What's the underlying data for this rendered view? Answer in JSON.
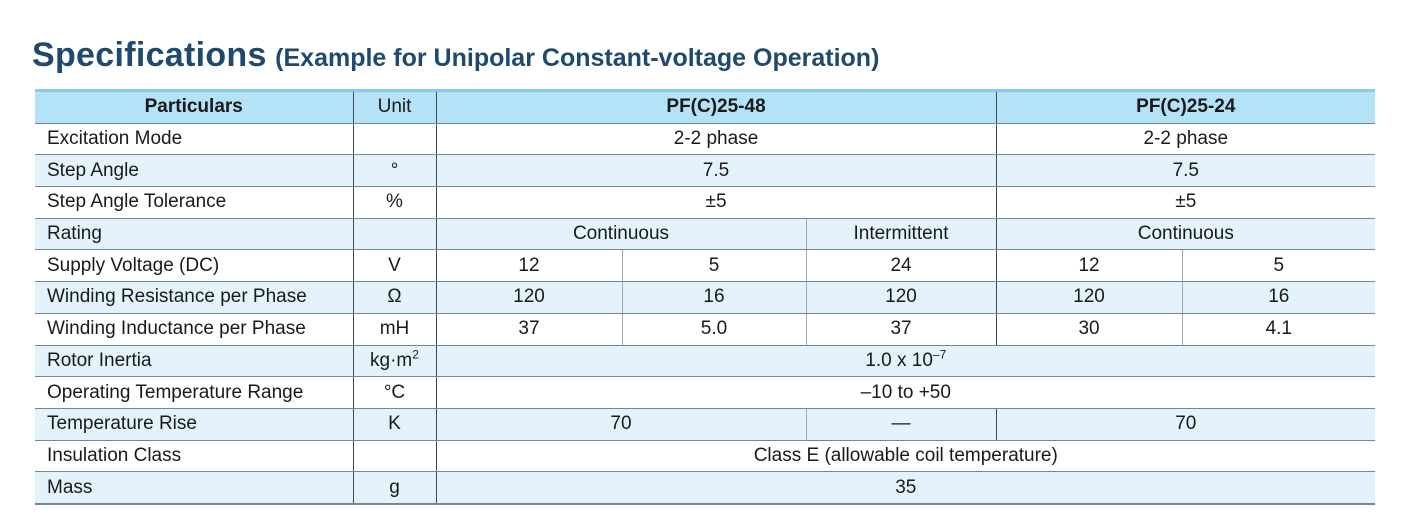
{
  "title": {
    "main": "Specifications",
    "sub": "(Example for Unipolar Constant-voltage Operation)"
  },
  "header": {
    "particulars": "Particulars",
    "unit": "Unit",
    "model_a": "PF(C)25-48",
    "model_b": "PF(C)25-24"
  },
  "rows": {
    "excitation": {
      "label": "Excitation Mode",
      "unit": "",
      "a": "2-2 phase",
      "b": "2-2 phase"
    },
    "step_angle": {
      "label": "Step Angle",
      "unit": "°",
      "a": "7.5",
      "b": "7.5"
    },
    "tolerance": {
      "label": "Step Angle Tolerance",
      "unit": "%",
      "a": "±5",
      "b": "±5"
    },
    "rating": {
      "label": "Rating",
      "unit": "",
      "a_cont": "Continuous",
      "a_int": "Intermittent",
      "b": "Continuous"
    },
    "voltage": {
      "label": "Supply Voltage (DC)",
      "unit": "V",
      "values": [
        "12",
        "5",
        "24",
        "12",
        "5"
      ]
    },
    "resistance": {
      "label": "Winding Resistance per Phase",
      "unit": "Ω",
      "values": [
        "120",
        "16",
        "120",
        "120",
        "16"
      ]
    },
    "inductance": {
      "label": "Winding Inductance per Phase",
      "unit": "mH",
      "values": [
        "37",
        "5.0",
        "37",
        "30",
        "4.1"
      ]
    },
    "inertia": {
      "label": "Rotor Inertia",
      "unit_base": "kg·m",
      "unit_exp": "2",
      "value_base": "1.0 x 10",
      "value_exp": "–7"
    },
    "temp_range": {
      "label": "Operating Temperature Range",
      "unit": "°C",
      "value": "–10 to +50"
    },
    "temp_rise": {
      "label": "Temperature Rise",
      "unit": "K",
      "a_cont": "70",
      "a_int": "—",
      "b": "70"
    },
    "insulation": {
      "label": "Insulation Class",
      "unit": "",
      "value": "Class E (allowable coil temperature)"
    },
    "mass": {
      "label": "Mass",
      "unit": "g",
      "value": "35"
    }
  }
}
